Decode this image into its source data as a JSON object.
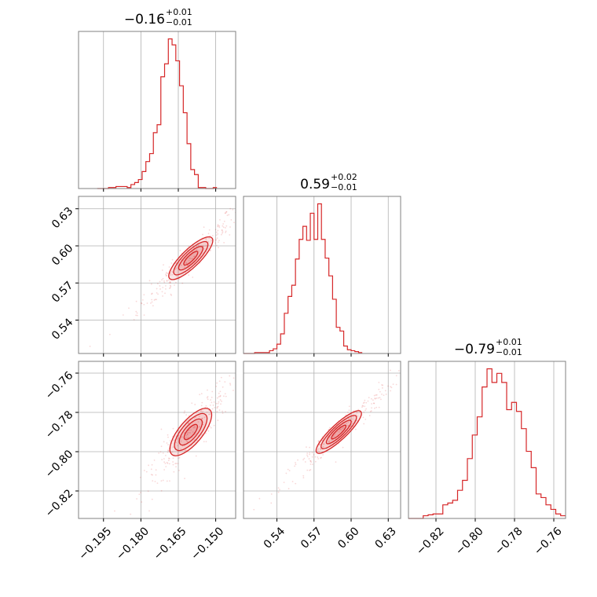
{
  "colors": {
    "series": "#d62728",
    "grid": "#b0b0b0",
    "frame": "#808080"
  },
  "chart_data": {
    "type": "corner",
    "grid": true,
    "parameters": [
      {
        "range": [
          -0.205,
          -0.142
        ],
        "ticks": [
          -0.195,
          -0.18,
          -0.165,
          -0.15
        ],
        "tick_labels": [
          "−0.195",
          "−0.180",
          "−0.165",
          "−0.150"
        ]
      },
      {
        "range": [
          0.513,
          0.64
        ],
        "ticks": [
          0.54,
          0.57,
          0.6,
          0.63
        ],
        "tick_labels": [
          "0.54",
          "0.57",
          "0.60",
          "0.63"
        ]
      },
      {
        "range": [
          -0.834,
          -0.754
        ],
        "ticks": [
          -0.82,
          -0.8,
          -0.78,
          -0.76
        ],
        "tick_labels": [
          "−0.82",
          "−0.80",
          "−0.78",
          "−0.76"
        ]
      }
    ],
    "titles": [
      {
        "value": "−0.16",
        "upper": "+0.01",
        "lower": "−0.01"
      },
      {
        "value": "0.59",
        "upper": "+0.02",
        "lower": "−0.01"
      },
      {
        "value": "−0.79",
        "upper": "+0.01",
        "lower": "−0.01"
      }
    ],
    "histograms": [
      {
        "start": -0.1975,
        "bin_width": 0.0015,
        "counts": [
          0,
          0,
          0,
          1,
          1,
          2,
          2,
          2,
          1,
          4,
          6,
          9,
          17,
          27,
          35,
          56,
          64,
          112,
          125,
          150,
          144,
          128,
          103,
          76,
          45,
          19,
          14,
          1,
          1,
          0,
          0,
          1
        ]
      },
      {
        "start": 0.513,
        "bin_width": 0.003,
        "counts": [
          0,
          0,
          0,
          1,
          1,
          1,
          1,
          3,
          5,
          10,
          21,
          43,
          61,
          73,
          101,
          122,
          136,
          121,
          150,
          122,
          160,
          122,
          102,
          83,
          58,
          28,
          24,
          8,
          4,
          3,
          2,
          1
        ]
      },
      {
        "start": -0.834,
        "bin_width": 0.0025,
        "counts": [
          0,
          0,
          0,
          3,
          4,
          5,
          5,
          15,
          17,
          20,
          31,
          42,
          66,
          92,
          112,
          145,
          165,
          150,
          160,
          150,
          120,
          128,
          118,
          99,
          74,
          56,
          27,
          23,
          15,
          10,
          5,
          3
        ]
      }
    ],
    "pairs": [
      {
        "x_param": 0,
        "y_param": 1,
        "center": [
          -0.16,
          0.59
        ],
        "angle_deg": 44,
        "half_axes": [
          0.028,
          0.0022
        ]
      },
      {
        "x_param": 0,
        "y_param": 2,
        "center": [
          -0.16,
          -0.79
        ],
        "angle_deg": 50,
        "half_axes": [
          0.028,
          0.0018
        ]
      },
      {
        "x_param": 1,
        "y_param": 2,
        "center": [
          0.59,
          -0.79
        ],
        "angle_deg": 43,
        "half_axes": [
          0.058,
          0.0012
        ]
      }
    ],
    "contour_levels": [
      1.0,
      0.78,
      0.55,
      0.32
    ]
  }
}
